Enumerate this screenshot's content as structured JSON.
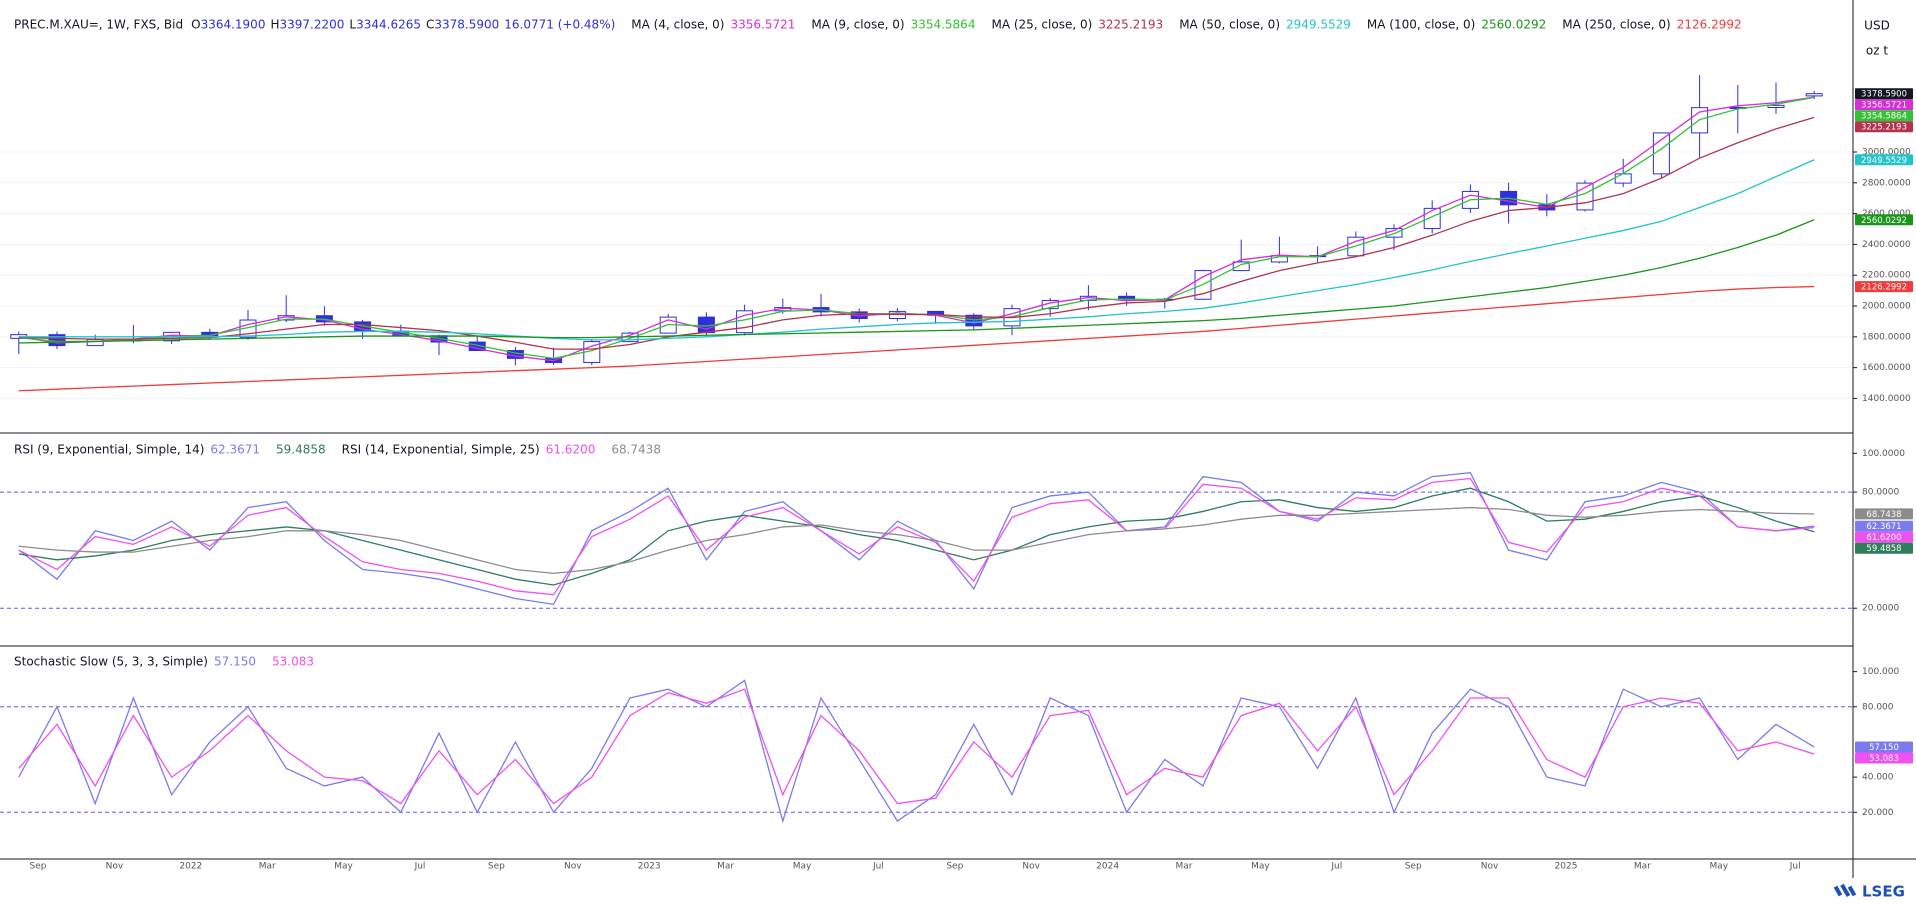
{
  "chart_data": [
    {
      "type": "candlestick",
      "title": "PREC.M.XAU=, 1W, FXS, Bid",
      "header": [
        {
          "key": "O",
          "text": "3364.1900"
        },
        {
          "key": "H",
          "text": "3397.2200"
        },
        {
          "key": "L",
          "text": "3344.6265"
        },
        {
          "key": "C",
          "text": "3378.5900"
        }
      ],
      "change": "16.0771 (+0.48%)",
      "unit_labels": [
        "USD",
        "oz t"
      ],
      "color": "#2f2fe0",
      "open": [
        1790,
        1814,
        1743,
        1783,
        1774,
        1829,
        1797,
        1909,
        1937,
        1897,
        1837,
        1807,
        1766,
        1711,
        1660,
        1633,
        1769,
        1824,
        1928,
        1827,
        1969,
        1990,
        1962,
        1919,
        1965,
        1940,
        1871,
        1983,
        2036,
        2063,
        2039,
        2044,
        2230,
        2286,
        2327,
        2326,
        2447,
        2503,
        2634,
        2744,
        2657,
        2624,
        2798,
        2858,
        3124,
        3288,
        3289,
        3364.19
      ],
      "high": [
        1834,
        1834,
        1814,
        1877,
        1831,
        1853,
        1974,
        2070,
        1998,
        1910,
        1879,
        1814,
        1807,
        1735,
        1730,
        1786,
        1833,
        1949,
        1960,
        2009,
        2048,
        2079,
        1983,
        1987,
        1966,
        1953,
        2009,
        2052,
        2135,
        2088,
        2053,
        2236,
        2431,
        2450,
        2388,
        2484,
        2531,
        2686,
        2790,
        2801,
        2726,
        2817,
        2956,
        3128,
        3500,
        3435,
        3452,
        3397.22
      ],
      "low": [
        1688,
        1721,
        1746,
        1758,
        1753,
        1780,
        1780,
        1895,
        1872,
        1787,
        1805,
        1681,
        1710,
        1615,
        1617,
        1616,
        1765,
        1822,
        1805,
        1809,
        1950,
        1932,
        1893,
        1903,
        1885,
        1846,
        1810,
        1931,
        1973,
        2002,
        1984,
        2039,
        2228,
        2277,
        2286,
        2319,
        2364,
        2471,
        2604,
        2536,
        2583,
        2614,
        2772,
        2833,
        2957,
        3121,
        3248,
        3344.63
      ],
      "close": [
        1814,
        1743,
        1783,
        1774,
        1829,
        1797,
        1909,
        1937,
        1897,
        1837,
        1807,
        1766,
        1711,
        1660,
        1633,
        1769,
        1824,
        1928,
        1827,
        1969,
        1990,
        1962,
        1919,
        1965,
        1940,
        1871,
        1983,
        2036,
        2063,
        2039,
        2044,
        2230,
        2286,
        2327,
        2326,
        2447,
        2503,
        2634,
        2744,
        2657,
        2624,
        2798,
        2858,
        3124,
        3288,
        3289,
        3303,
        3378.59
      ],
      "series": [
        {
          "name": "MA (4, close, 0)",
          "last_label": "3356.5721",
          "color": "#d62fd6",
          "values": [
            1800,
            1760,
            1770,
            1785,
            1810,
            1805,
            1880,
            1930,
            1910,
            1850,
            1815,
            1775,
            1725,
            1675,
            1645,
            1740,
            1810,
            1910,
            1850,
            1940,
            1985,
            1975,
            1935,
            1955,
            1940,
            1890,
            1950,
            2020,
            2055,
            2035,
            2040,
            2190,
            2300,
            2330,
            2320,
            2420,
            2490,
            2620,
            2720,
            2680,
            2640,
            2770,
            2900,
            3080,
            3260,
            3300,
            3320,
            3356.5721
          ]
        },
        {
          "name": "MA (9, close, 0)",
          "last_label": "3354.5864",
          "color": "#33c233",
          "values": [
            1795,
            1770,
            1770,
            1780,
            1800,
            1810,
            1860,
            1915,
            1915,
            1870,
            1830,
            1790,
            1745,
            1695,
            1660,
            1710,
            1790,
            1880,
            1870,
            1910,
            1965,
            1975,
            1950,
            1950,
            1945,
            1910,
            1930,
            1990,
            2040,
            2045,
            2040,
            2140,
            2270,
            2320,
            2320,
            2390,
            2470,
            2580,
            2690,
            2700,
            2660,
            2730,
            2860,
            3020,
            3210,
            3280,
            3310,
            3354.5864
          ]
        },
        {
          "name": "MA (25, close, 0)",
          "last_label": "3225.2193",
          "color": "#b2334d",
          "values": [
            1795,
            1790,
            1785,
            1785,
            1790,
            1795,
            1820,
            1850,
            1880,
            1880,
            1860,
            1840,
            1805,
            1765,
            1720,
            1720,
            1750,
            1800,
            1830,
            1860,
            1910,
            1940,
            1950,
            1945,
            1945,
            1930,
            1925,
            1950,
            1990,
            2020,
            2030,
            2080,
            2160,
            2230,
            2280,
            2320,
            2380,
            2460,
            2550,
            2620,
            2640,
            2670,
            2730,
            2830,
            2960,
            3060,
            3150,
            3225.2193
          ]
        },
        {
          "name": "MA (50, close, 0)",
          "last_label": "2949.5529",
          "color": "#22c4cc",
          "values": [
            1800,
            1800,
            1800,
            1800,
            1800,
            1800,
            1805,
            1815,
            1830,
            1835,
            1835,
            1830,
            1820,
            1805,
            1790,
            1780,
            1780,
            1790,
            1800,
            1815,
            1830,
            1850,
            1865,
            1880,
            1890,
            1895,
            1900,
            1915,
            1930,
            1950,
            1965,
            1985,
            2020,
            2060,
            2100,
            2140,
            2185,
            2235,
            2290,
            2340,
            2390,
            2440,
            2490,
            2550,
            2640,
            2730,
            2840,
            2949.5529
          ]
        },
        {
          "name": "MA (100, close, 0)",
          "last_label": "2560.0292",
          "color": "#1a961a",
          "values": [
            1760,
            1765,
            1770,
            1775,
            1780,
            1785,
            1790,
            1795,
            1800,
            1805,
            1805,
            1805,
            1805,
            1800,
            1795,
            1795,
            1800,
            1805,
            1810,
            1815,
            1820,
            1825,
            1830,
            1835,
            1840,
            1845,
            1855,
            1865,
            1875,
            1885,
            1895,
            1905,
            1920,
            1940,
            1960,
            1980,
            2000,
            2030,
            2060,
            2090,
            2120,
            2160,
            2200,
            2250,
            2310,
            2380,
            2460,
            2560.0292
          ]
        },
        {
          "name": "MA (250, close, 0)",
          "last_label": "2126.2992",
          "color": "#ef3b3b",
          "values": [
            1450,
            1460,
            1470,
            1480,
            1490,
            1500,
            1510,
            1520,
            1530,
            1540,
            1550,
            1560,
            1570,
            1580,
            1590,
            1600,
            1610,
            1625,
            1640,
            1655,
            1670,
            1685,
            1700,
            1715,
            1730,
            1745,
            1760,
            1775,
            1790,
            1805,
            1820,
            1835,
            1855,
            1875,
            1895,
            1915,
            1935,
            1955,
            1975,
            1995,
            2015,
            2035,
            2055,
            2075,
            2095,
            2110,
            2120,
            2126.2992
          ]
        }
      ],
      "ylim": [
        1182,
        3987
      ],
      "yticks": [
        {
          "value": 1400,
          "label": "1400.0000"
        },
        {
          "value": 1600,
          "label": "1600.0000"
        },
        {
          "value": 1800,
          "label": "1800.0000"
        },
        {
          "value": 2000,
          "label": "2000.0000"
        },
        {
          "value": 2200,
          "label": "2200.0000"
        },
        {
          "value": 2400,
          "label": "2400.0000"
        },
        {
          "value": 2600,
          "label": "2600.0000"
        },
        {
          "value": 2800,
          "label": "2800.0000"
        },
        {
          "value": 3000,
          "label": "3000.0000"
        }
      ],
      "grid": true
    },
    {
      "type": "line",
      "series": [
        {
          "name": "RSI (9, Exponential, Simple, 14)",
          "last_label": "62.3671",
          "color": "#7b7bef",
          "values": [
            50,
            35,
            60,
            55,
            65,
            50,
            72,
            75,
            55,
            40,
            38,
            35,
            30,
            25,
            22,
            60,
            70,
            82,
            45,
            70,
            75,
            60,
            45,
            65,
            55,
            30,
            72,
            78,
            80,
            60,
            62,
            88,
            85,
            70,
            65,
            80,
            78,
            88,
            90,
            50,
            45,
            75,
            78,
            85,
            80,
            62,
            60,
            62.3671
          ]
        },
        {
          "last_label": "59.4858",
          "color": "#2e7d5b",
          "values": [
            48,
            45,
            47,
            50,
            55,
            58,
            60,
            62,
            60,
            55,
            50,
            45,
            40,
            35,
            32,
            38,
            45,
            60,
            65,
            68,
            65,
            62,
            58,
            55,
            50,
            45,
            50,
            58,
            62,
            65,
            66,
            70,
            75,
            76,
            72,
            70,
            72,
            78,
            82,
            75,
            65,
            66,
            70,
            75,
            78,
            72,
            65,
            59.4858
          ]
        },
        {
          "name": "RSI (14, Exponential, Simple, 25)",
          "last_label": "61.6200",
          "color": "#f050f0",
          "values": [
            50,
            40,
            57,
            53,
            62,
            52,
            68,
            72,
            57,
            44,
            40,
            38,
            34,
            29,
            27,
            57,
            66,
            78,
            50,
            67,
            72,
            60,
            48,
            62,
            54,
            34,
            67,
            74,
            76,
            60,
            61,
            84,
            82,
            70,
            66,
            77,
            76,
            85,
            87,
            54,
            49,
            72,
            75,
            82,
            78,
            62,
            60,
            61.62
          ]
        },
        {
          "last_label": "68.7438",
          "color": "#8c8c8c",
          "values": [
            52,
            50,
            49,
            49,
            52,
            55,
            57,
            60,
            60,
            58,
            55,
            50,
            45,
            40,
            38,
            40,
            44,
            50,
            55,
            58,
            62,
            63,
            60,
            58,
            55,
            50,
            50,
            54,
            58,
            60,
            61,
            63,
            66,
            68,
            68,
            69,
            70,
            71,
            72,
            71,
            68,
            67,
            68,
            70,
            71,
            70,
            69,
            68.7438
          ]
        }
      ],
      "levels": [
        20,
        80
      ],
      "ylim": [
        1,
        110
      ],
      "yticks": [
        {
          "value": 20,
          "label": "20.0000"
        },
        {
          "value": 80,
          "label": "80.0000"
        },
        {
          "value": 100,
          "label": "100.0000"
        }
      ]
    },
    {
      "type": "line",
      "series": [
        {
          "name": "Stochastic Slow (5, 3, 3, Simple)",
          "last_label": "57.150",
          "color": "#7b7bef",
          "values": [
            40,
            80,
            25,
            85,
            30,
            60,
            80,
            45,
            35,
            40,
            20,
            65,
            20,
            60,
            20,
            45,
            85,
            90,
            80,
            95,
            15,
            85,
            50,
            15,
            30,
            70,
            30,
            85,
            75,
            20,
            50,
            35,
            85,
            80,
            45,
            85,
            20,
            65,
            90,
            80,
            40,
            35,
            90,
            80,
            85,
            50,
            70,
            57.15
          ]
        },
        {
          "last_label": "53.083",
          "color": "#f050f0",
          "values": [
            45,
            70,
            35,
            75,
            40,
            55,
            75,
            55,
            40,
            38,
            25,
            55,
            30,
            50,
            25,
            40,
            75,
            88,
            82,
            90,
            30,
            75,
            55,
            25,
            28,
            60,
            40,
            75,
            78,
            30,
            45,
            40,
            75,
            82,
            55,
            80,
            30,
            55,
            85,
            85,
            50,
            40,
            80,
            85,
            82,
            55,
            60,
            53.083
          ]
        }
      ],
      "levels": [
        20,
        80
      ],
      "ylim": [
        -6,
        114
      ],
      "yticks": [
        {
          "value": 20,
          "label": "20.000"
        },
        {
          "value": 40,
          "label": "40.000"
        },
        {
          "value": 80,
          "label": "80.000"
        },
        {
          "value": 100,
          "label": "100.000"
        }
      ],
      "categories": [
        null,
        "Sep",
        null,
        "Nov",
        null,
        "2022",
        null,
        "Mar",
        null,
        "May",
        null,
        "Jul",
        null,
        "Sep",
        null,
        "Nov",
        null,
        "2023",
        null,
        "Mar",
        null,
        "May",
        null,
        "Jul",
        null,
        "Sep",
        null,
        "Nov",
        null,
        "2024",
        null,
        "Mar",
        null,
        "May",
        null,
        "Jul",
        null,
        "Sep",
        null,
        "Nov",
        null,
        "2025",
        null,
        "Mar",
        null,
        "May",
        null,
        "Jul"
      ]
    }
  ],
  "logo": "LSEG"
}
